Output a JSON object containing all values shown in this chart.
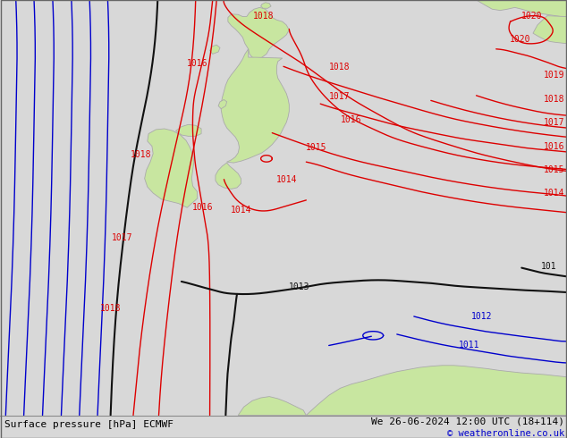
{
  "title_left": "Surface pressure [hPa] ECMWF",
  "title_right": "We 26-06-2024 12:00 UTC (18+114)",
  "copyright": "© weatheronline.co.uk",
  "bg_color": "#d8d8d8",
  "land_color": "#c8e6a0",
  "land_edge_color": "#aaaaaa",
  "fig_width": 6.34,
  "fig_height": 4.9,
  "dpi": 100,
  "bottom_bar_color": "#e0e0e0",
  "bottom_bar_height": 0.052,
  "red": "#dd0000",
  "blue": "#0000cc",
  "black": "#111111"
}
